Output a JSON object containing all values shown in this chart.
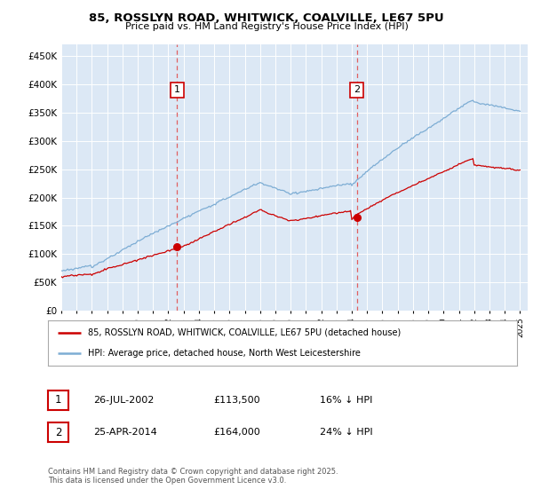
{
  "title_line1": "85, ROSSLYN ROAD, WHITWICK, COALVILLE, LE67 5PU",
  "title_line2": "Price paid vs. HM Land Registry's House Price Index (HPI)",
  "legend_line1": "85, ROSSLYN ROAD, WHITWICK, COALVILLE, LE67 5PU (detached house)",
  "legend_line2": "HPI: Average price, detached house, North West Leicestershire",
  "annotation1_date": "26-JUL-2002",
  "annotation1_price": "£113,500",
  "annotation1_hpi": "16% ↓ HPI",
  "annotation2_date": "25-APR-2014",
  "annotation2_price": "£164,000",
  "annotation2_hpi": "24% ↓ HPI",
  "red_color": "#cc0000",
  "blue_color": "#7dadd4",
  "vline_color": "#e06060",
  "background_color": "#dce8f5",
  "ylim": [
    0,
    470000
  ],
  "yticks": [
    0,
    50000,
    100000,
    150000,
    200000,
    250000,
    300000,
    350000,
    400000,
    450000
  ],
  "footer": "Contains HM Land Registry data © Crown copyright and database right 2025.\nThis data is licensed under the Open Government Licence v3.0.",
  "sale1_year": 2002.57,
  "sale1_price": 113500,
  "sale2_year": 2014.32,
  "sale2_price": 164000,
  "xlim_start": 1995,
  "xlim_end": 2025.5
}
